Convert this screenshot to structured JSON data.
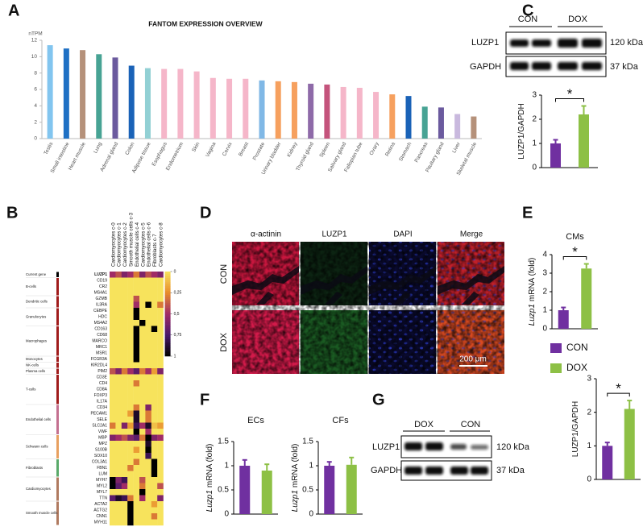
{
  "panel_labels": [
    "A",
    "B",
    "C",
    "D",
    "E",
    "F",
    "G"
  ],
  "chart_data": [
    {
      "type": "bar",
      "title": "FANTOM EXPRESSION OVERVIEW",
      "ylabel": "nTPM",
      "categories": [
        "Testis",
        "Small intestine",
        "Heart muscle",
        "Lung",
        "Adrenal gland",
        "Colon",
        "Adipose tissue",
        "Esophagus",
        "Endometrium",
        "Skin",
        "Vagina",
        "Cervix",
        "Breast",
        "Prostate",
        "Urinary bladder",
        "Kidney",
        "Thyroid gland",
        "Spleen",
        "Salivary gland",
        "Fallopian tube",
        "Ovary",
        "Retina",
        "Stomach",
        "Pancreas",
        "Pituitary gland",
        "Liver",
        "Skeletal muscle"
      ],
      "values": [
        11.4,
        11.0,
        10.8,
        10.3,
        9.9,
        8.9,
        8.6,
        8.5,
        8.5,
        8.2,
        7.4,
        7.3,
        7.3,
        7.1,
        7.0,
        6.9,
        6.7,
        6.6,
        6.3,
        6.2,
        5.7,
        5.4,
        5.2,
        3.9,
        3.8,
        3.0,
        2.7
      ],
      "colors": [
        "#82c5ef",
        "#1f70c4",
        "#b5917a",
        "#47a394",
        "#6b5a9e",
        "#1a62b7",
        "#92d0d4",
        "#f5b6c9",
        "#f5b6c9",
        "#f5b6c9",
        "#f5b6c9",
        "#f5b6c9",
        "#f5b6c9",
        "#80b8e6",
        "#f6a05e",
        "#f6a05e",
        "#8e6aa8",
        "#c4547c",
        "#f5b6c9",
        "#f5b6c9",
        "#f5b6c9",
        "#f6a05e",
        "#1a62b7",
        "#47a394",
        "#6b5a9e",
        "#c9b9de",
        "#b5917a"
      ],
      "ylim": [
        0,
        12
      ],
      "yticks": [
        0,
        2,
        4,
        6,
        8,
        10,
        12
      ]
    },
    {
      "type": "heatmap",
      "columns": [
        "Cardiomyocytes c-0",
        "Cardiomyocytes c-1",
        "Cardiomyocytes c-2",
        "Smooth muscle cells c-3",
        "Endothelial cells c-4",
        "Cardiomyocytes c-5",
        "Endothelial cells c-6",
        "Fibroblasts c-7",
        "Cardiomyocytes c-8"
      ],
      "colormap": [
        "#f7e35c",
        "#e88c2a",
        "#a02c66",
        "#4a186a",
        "#000000"
      ],
      "clim": [
        0,
        1
      ],
      "cticks": [
        0,
        {
          "value": 0.25,
          "label": "0,25"
        },
        {
          "value": 0.5,
          "label": "0,5"
        },
        {
          "value": 0.75,
          "label": "0,75"
        },
        1
      ],
      "groups": [
        {
          "name": "Current gene",
          "color": "#000000",
          "genes": [
            "LUZP1"
          ],
          "values": [
            [
              0.5,
              0.4,
              0.6,
              0.5,
              0.3,
              0.6,
              0.4,
              0.5,
              0.6
            ]
          ]
        },
        {
          "name": "B-cells",
          "color": "#a01c1c",
          "genes": [
            "CD19",
            "CR2",
            "MS4A1"
          ],
          "values": [
            [
              0,
              0,
              0,
              0,
              0,
              0,
              0,
              0,
              0
            ],
            [
              0,
              0,
              0,
              0,
              0,
              0,
              0,
              0,
              0
            ],
            [
              0,
              0,
              0,
              0,
              0,
              0,
              0,
              0,
              0
            ]
          ]
        },
        {
          "name": "Dendritic cells",
          "color": "#a01c1c",
          "genes": [
            "GZMB",
            "IL3RA"
          ],
          "values": [
            [
              0,
              0,
              0,
              0,
              0.4,
              0,
              0,
              0,
              0
            ],
            [
              0,
              0,
              0,
              0,
              0.5,
              0,
              1,
              0,
              0.3
            ]
          ]
        },
        {
          "name": "Granulocytes",
          "color": "#a01c1c",
          "genes": [
            "CEBPE",
            "HDC",
            "MS4A2"
          ],
          "values": [
            [
              0,
              0,
              0,
              0,
              1,
              0,
              0,
              0,
              0
            ],
            [
              0,
              0,
              0,
              0,
              1,
              0,
              0,
              0,
              0
            ],
            [
              0,
              0,
              0,
              0,
              0,
              1,
              0,
              0,
              0
            ]
          ]
        },
        {
          "name": "Macrophages",
          "color": "#a01c1c",
          "genes": [
            "CD163",
            "CD68",
            "MARCO",
            "MRC1",
            "MSR1"
          ],
          "values": [
            [
              0,
              0,
              0,
              0,
              1,
              0,
              0,
              1,
              0
            ],
            [
              0,
              0,
              0,
              0,
              1,
              0,
              0,
              0,
              0
            ],
            [
              0,
              0,
              0,
              0,
              1,
              0,
              0,
              0,
              0
            ],
            [
              0,
              0,
              0,
              0,
              1,
              0,
              0,
              0,
              0
            ],
            [
              0,
              0,
              0,
              0,
              1,
              0,
              0,
              0,
              0
            ]
          ]
        },
        {
          "name": "Monocytes",
          "color": "#a01c1c",
          "genes": [
            "FCGR3A"
          ],
          "values": [
            [
              0,
              0,
              0,
              0,
              1,
              0,
              0,
              0,
              0
            ]
          ]
        },
        {
          "name": "NK-cells",
          "color": "#a01c1c",
          "genes": [
            "KIR2DL4"
          ],
          "values": [
            [
              0,
              0,
              0,
              0,
              0,
              0,
              0,
              0,
              0
            ]
          ]
        },
        {
          "name": "Plasma cells",
          "color": "#a01c1c",
          "genes": [
            "PIM2"
          ],
          "values": [
            [
              0.4,
              0.6,
              0.3,
              0.5,
              0.7,
              0.3,
              0.5,
              0.2,
              0.6
            ]
          ]
        },
        {
          "name": "T-cells",
          "color": "#a01c1c",
          "genes": [
            "CD3E",
            "CD4",
            "CD8A",
            "FOXP3",
            "IL17A"
          ],
          "values": [
            [
              0,
              0,
              0,
              0,
              0,
              0,
              0,
              0,
              0
            ],
            [
              0,
              0,
              0,
              0,
              0.3,
              0,
              0,
              0,
              0
            ],
            [
              0,
              0,
              0,
              0,
              0,
              0,
              0,
              0,
              0
            ],
            [
              0,
              0,
              0,
              0,
              0,
              0,
              0,
              0,
              0
            ],
            [
              0,
              0,
              0,
              0,
              0,
              0,
              0,
              0,
              0
            ]
          ]
        },
        {
          "name": "Endothelial cells",
          "color": "#c47090",
          "genes": [
            "CD34",
            "PECAM1",
            "SELE",
            "SLC2A1",
            "VWF"
          ],
          "values": [
            [
              0,
              0,
              0,
              0,
              0.3,
              0,
              0.6,
              0,
              0
            ],
            [
              0,
              0,
              0,
              0.2,
              0.9,
              0,
              0.3,
              0,
              0
            ],
            [
              0,
              0,
              0,
              0,
              0.9,
              0,
              0.3,
              0,
              0
            ],
            [
              0.3,
              0,
              0.6,
              0.2,
              0.8,
              0.5,
              0.9,
              0.1,
              0.2
            ],
            [
              0,
              0,
              0,
              0,
              1,
              0,
              0.5,
              0,
              0
            ]
          ]
        },
        {
          "name": "Schwann cells",
          "color": "#e8a060",
          "genes": [
            "MBP",
            "MPZ",
            "S100B",
            "SOX10"
          ],
          "values": [
            [
              0.6,
              0.5,
              0.4,
              0.6,
              0.7,
              0.3,
              1,
              0.6,
              0.5
            ],
            [
              0,
              0,
              0,
              0,
              0,
              0,
              0.9,
              0,
              0
            ],
            [
              0,
              0,
              0,
              0,
              0.2,
              0,
              1,
              0,
              0
            ],
            [
              0,
              0,
              0,
              0,
              0,
              0,
              0.8,
              0,
              0
            ]
          ]
        },
        {
          "name": "Fibroblasts",
          "color": "#5aaa6a",
          "genes": [
            "COL3A1",
            "FBN1",
            "LUM"
          ],
          "values": [
            [
              0,
              0,
              0,
              0,
              0.3,
              0,
              0,
              1,
              0
            ],
            [
              0,
              0,
              0,
              0.3,
              0,
              0,
              0,
              1,
              0
            ],
            [
              0,
              0,
              0,
              0,
              0,
              0,
              0,
              1,
              0
            ]
          ]
        },
        {
          "name": "Cardiomyocytes",
          "color": "#b07a60",
          "genes": [
            "MYH7",
            "MYL2",
            "MYL7",
            "TTN"
          ],
          "values": [
            [
              1,
              0.6,
              0.8,
              0,
              0,
              0.4,
              0,
              0,
              0
            ],
            [
              1,
              0.7,
              0.5,
              0,
              0,
              0.3,
              0,
              0,
              0.4
            ],
            [
              0,
              0,
              0,
              0,
              0,
              1,
              0,
              0,
              0
            ],
            [
              0.7,
              0.9,
              0.8,
              0.3,
              0,
              0.5,
              0,
              0,
              0.6
            ]
          ]
        },
        {
          "name": "Smooth muscle cells",
          "color": "#b07a60",
          "genes": [
            "ACTA2",
            "ACTG2",
            "CNN1",
            "MYH11"
          ],
          "values": [
            [
              0,
              0,
              0,
              1,
              0,
              0,
              0,
              0.2,
              0
            ],
            [
              0,
              0,
              0,
              1,
              0,
              0,
              0,
              0,
              0
            ],
            [
              0,
              0,
              0,
              1,
              0,
              0,
              0,
              0.3,
              0
            ],
            [
              0,
              0,
              0,
              1,
              0,
              0,
              0,
              0,
              0
            ]
          ]
        }
      ]
    },
    {
      "type": "bar",
      "ylabel": "LUZP1/GAPDH",
      "annotation": "*",
      "categories": [
        null
      ],
      "series": [
        {
          "color": "#7030a0",
          "values": [
            1.0
          ],
          "errors": [
            0.15
          ]
        },
        {
          "color": "#8dc045",
          "values": [
            2.2
          ],
          "errors": [
            0.35
          ]
        }
      ],
      "ylim": [
        0,
        3
      ],
      "yticks": [
        0,
        1,
        2,
        3
      ]
    },
    {
      "type": "bar",
      "title": "CMs",
      "ylabel_gene": "Luzp1",
      "ylabel": "mRNA (fold)",
      "annotation": "*",
      "categories": [
        null
      ],
      "legend": true,
      "series": [
        {
          "name": "CON",
          "color": "#7030a0",
          "values": [
            1.0
          ],
          "errors": [
            0.15
          ]
        },
        {
          "name": "DOX",
          "color": "#8dc045",
          "values": [
            3.25
          ],
          "errors": [
            0.25
          ]
        }
      ],
      "ylim": [
        0,
        4
      ],
      "yticks": [
        0,
        1,
        2,
        3,
        4
      ]
    },
    {
      "type": "bar",
      "title": "ECs",
      "ylabel_gene": "Luzp1",
      "ylabel": "mRNA (fold)",
      "categories": [
        null
      ],
      "series": [
        {
          "color": "#7030a0",
          "values": [
            1.0
          ],
          "errors": [
            0.12
          ]
        },
        {
          "color": "#8dc045",
          "values": [
            0.9
          ],
          "errors": [
            0.13
          ]
        }
      ],
      "ylim": [
        0,
        1.5
      ],
      "yticks": [
        0,
        0.5,
        1,
        1.5
      ]
    },
    {
      "type": "bar",
      "title": "CFs",
      "ylabel_gene": "Luzp1",
      "ylabel": "mRNA (fold)",
      "categories": [
        null
      ],
      "series": [
        {
          "color": "#7030a0",
          "values": [
            1.0
          ],
          "errors": [
            0.08
          ]
        },
        {
          "color": "#8dc045",
          "values": [
            1.02
          ],
          "errors": [
            0.15
          ]
        }
      ],
      "ylim": [
        0,
        1.5
      ],
      "yticks": [
        0,
        0.5,
        1,
        1.5
      ]
    },
    {
      "type": "bar",
      "ylabel": "LUZP1/GAPDH",
      "annotation": "*",
      "categories": [
        null
      ],
      "series": [
        {
          "color": "#7030a0",
          "values": [
            1.0
          ],
          "errors": [
            0.1
          ]
        },
        {
          "color": "#8dc045",
          "values": [
            2.1
          ],
          "errors": [
            0.25
          ]
        }
      ],
      "ylim": [
        0,
        3
      ],
      "yticks": [
        0,
        1,
        2,
        3
      ]
    }
  ],
  "blot_c": {
    "groups": [
      "CON",
      "DOX"
    ],
    "rows": [
      "LUZP1",
      "GAPDH"
    ],
    "sizes": [
      "120 kDa",
      "37 kDa"
    ]
  },
  "blot_g": {
    "groups": [
      "DOX",
      "CON"
    ],
    "rows": [
      "LUZP1",
      "GAPDH"
    ],
    "sizes": [
      "120 kDa",
      "37 kDa"
    ]
  },
  "images_d": {
    "channels": [
      "α-actinin",
      "LUZP1",
      "DAPI",
      "Merge"
    ],
    "conditions": [
      "CON",
      "DOX"
    ],
    "scale_bar": "200 μm"
  }
}
